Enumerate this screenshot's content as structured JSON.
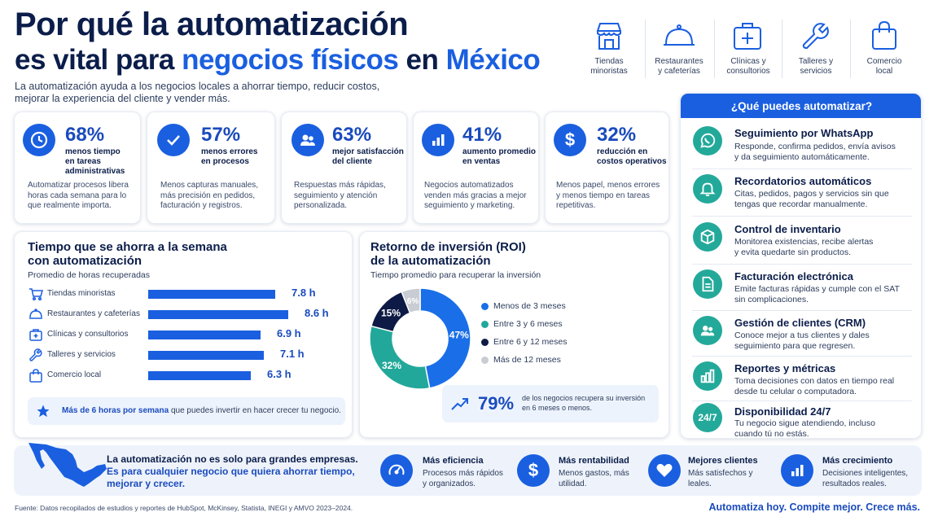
{
  "header": {
    "title_line1": "Por qué la automatización",
    "title_line2_a": "es vital para ",
    "title_line2_b": "negocios físicos",
    "title_line2_c": " en ",
    "title_line2_d": "México",
    "subtitle_line1": "La automatización ayuda a los negocios locales a ahorrar tiempo, reducir costos,",
    "subtitle_line2": "mejorar la experiencia del cliente y vender más."
  },
  "industries": [
    {
      "icon": "store-icon",
      "line1": "Tiendas",
      "line2": "minoristas"
    },
    {
      "icon": "cloche-icon",
      "line1": "Restaurantes",
      "line2": "y cafeterías"
    },
    {
      "icon": "medical-kit-icon",
      "line1": "Clínicas y",
      "line2": "consultorios"
    },
    {
      "icon": "wrench-icon",
      "line1": "Talleres y",
      "line2": "servicios"
    },
    {
      "icon": "shopping-bag-icon",
      "line1": "Comercio",
      "line2": "local"
    }
  ],
  "stats": [
    {
      "icon": "clock-icon",
      "value": "68%",
      "label1": "menos tiempo",
      "label2": "en tareas",
      "label3": "administrativas",
      "desc1": "Automatizar procesos libera",
      "desc2": "horas cada semana para lo",
      "desc3": "que realmente importa."
    },
    {
      "icon": "check-icon",
      "value": "57%",
      "label1": "menos errores",
      "label2": "en procesos",
      "label3": "",
      "desc1": "Menos capturas manuales,",
      "desc2": "más precisión en pedidos,",
      "desc3": "facturación y registros."
    },
    {
      "icon": "users-icon",
      "value": "63%",
      "label1": "mejor satisfacción",
      "label2": "del cliente",
      "label3": "",
      "desc1": "Respuestas más rápidas,",
      "desc2": "seguimiento y atención",
      "desc3": "personalizada."
    },
    {
      "icon": "bar-chart-icon",
      "value": "41%",
      "label1": "aumento promedio",
      "label2": "en ventas",
      "label3": "",
      "desc1": "Negocios automatizados",
      "desc2": "venden más gracias a mejor",
      "desc3": "seguimiento y marketing."
    },
    {
      "icon": "dollar-icon",
      "value": "32%",
      "label1": "reducción en",
      "label2": "costos operativos",
      "label3": "",
      "desc1": "Menos papel, menos errores",
      "desc2": "y menos tiempo en tareas",
      "desc3": "repetitivas."
    }
  ],
  "time_saved": {
    "title1": "Tiempo que se ahorra a la semana",
    "title2": "con automatización",
    "subtitle": "Promedio de horas recuperadas",
    "note_bold": "Más de 6 horas por semana",
    "note_rest": " que puedes invertir en hacer crecer tu negocio."
  },
  "roi": {
    "title1": "Retorno de inversión (ROI)",
    "title2": "de la automatización",
    "subtitle": "Tiempo promedio para recuperar la inversión",
    "highlight_value": "79%",
    "highlight_text1": "de los negocios recupera su inversión",
    "highlight_text2": "en 6 meses o menos."
  },
  "chart_data": [
    {
      "type": "bar",
      "orientation": "horizontal",
      "title": "Tiempo que se ahorra a la semana con automatización",
      "subtitle": "Promedio de horas recuperadas",
      "categories": [
        "Tiendas minoristas",
        "Restaurantes y cafeterías",
        "Clínicas y consultorios",
        "Talleres y servicios",
        "Comercio local"
      ],
      "category_icons": [
        "cart-icon",
        "cloche-icon",
        "medical-kit-icon",
        "wrench-icon",
        "shopping-bag-icon"
      ],
      "values": [
        7.8,
        8.6,
        6.9,
        7.1,
        6.3
      ],
      "value_labels": [
        "7.8 h",
        "8.6 h",
        "6.9 h",
        "7.1 h",
        "6.3 h"
      ],
      "unit": "h",
      "color": "#1a5fe0"
    },
    {
      "type": "pie",
      "variant": "donut",
      "title": "Retorno de inversión (ROI) de la automatización",
      "subtitle": "Tiempo promedio para recuperar la inversión",
      "categories": [
        "Menos de 3 meses",
        "Entre 3 y 6 meses",
        "Entre 6 y 12 meses",
        "Más de 12 meses"
      ],
      "values": [
        47,
        32,
        15,
        6
      ],
      "value_labels": [
        "47%",
        "32%",
        "15%",
        "6%"
      ],
      "colors": [
        "#1a6fe8",
        "#22a89a",
        "#0d1a45",
        "#c9ccd2"
      ],
      "legend_position": "right"
    }
  ],
  "automation": {
    "header": "¿Qué puedes automatizar?",
    "items": [
      {
        "icon": "whatsapp-icon",
        "title": "Seguimiento por WhatsApp",
        "desc1": "Responde, confirma pedidos, envía avisos",
        "desc2": "y da seguimiento automáticamente."
      },
      {
        "icon": "bell-icon",
        "title": "Recordatorios automáticos",
        "desc1": "Citas, pedidos, pagos y servicios sin que",
        "desc2": "tengas que recordar manualmente."
      },
      {
        "icon": "box-icon",
        "title": "Control de inventario",
        "desc1": "Monitorea existencias, recibe alertas",
        "desc2": "y evita quedarte sin productos."
      },
      {
        "icon": "document-icon",
        "title": "Facturación electrónica",
        "desc1": "Emite facturas rápidas y cumple con el SAT",
        "desc2": "sin complicaciones."
      },
      {
        "icon": "users-icon",
        "title": "Gestión de clientes (CRM)",
        "desc1": "Conoce mejor a tus clientes y dales",
        "desc2": "seguimiento para que regresen."
      },
      {
        "icon": "report-icon",
        "title": "Reportes y métricas",
        "desc1": "Toma decisiones con datos en tiempo real",
        "desc2": "desde tu celular o computadora."
      },
      {
        "icon": "24-7-icon",
        "icon_text": "24/7",
        "title": "Disponibilidad 24/7",
        "desc1": "Tu negocio sigue atendiendo, incluso",
        "desc2": "cuando tú no estás."
      }
    ]
  },
  "bottom": {
    "line1": "La automatización no es solo para grandes empresas.",
    "line2": "Es para cualquier negocio que quiera ahorrar tiempo,",
    "line3": "mejorar y crecer.",
    "benefits": [
      {
        "icon": "speedometer-icon",
        "title": "Más eficiencia",
        "desc1": "Procesos más rápidos",
        "desc2": "y organizados."
      },
      {
        "icon": "dollar-icon",
        "title": "Más rentabilidad",
        "desc1": "Menos gastos, más",
        "desc2": "utilidad."
      },
      {
        "icon": "heart-icon",
        "title": "Mejores clientes",
        "desc1": "Más satisfechos y",
        "desc2": "leales."
      },
      {
        "icon": "bar-chart-icon",
        "title": "Más crecimiento",
        "desc1": "Decisiones inteligentes,",
        "desc2": "resultados reales."
      }
    ]
  },
  "footer": {
    "source": "Fuente: Datos recopilados de estudios y reportes de HubSpot, McKinsey, Statista, INEGI y AMVO 2023–2024.",
    "tagline": "Automatiza hoy. Compite mejor. Crece más."
  },
  "colors": {
    "navy": "#0b1d4a",
    "blue": "#1a5fe0",
    "teal": "#23a99a",
    "dark": "#0d1a45",
    "gray": "#c9ccd2"
  }
}
